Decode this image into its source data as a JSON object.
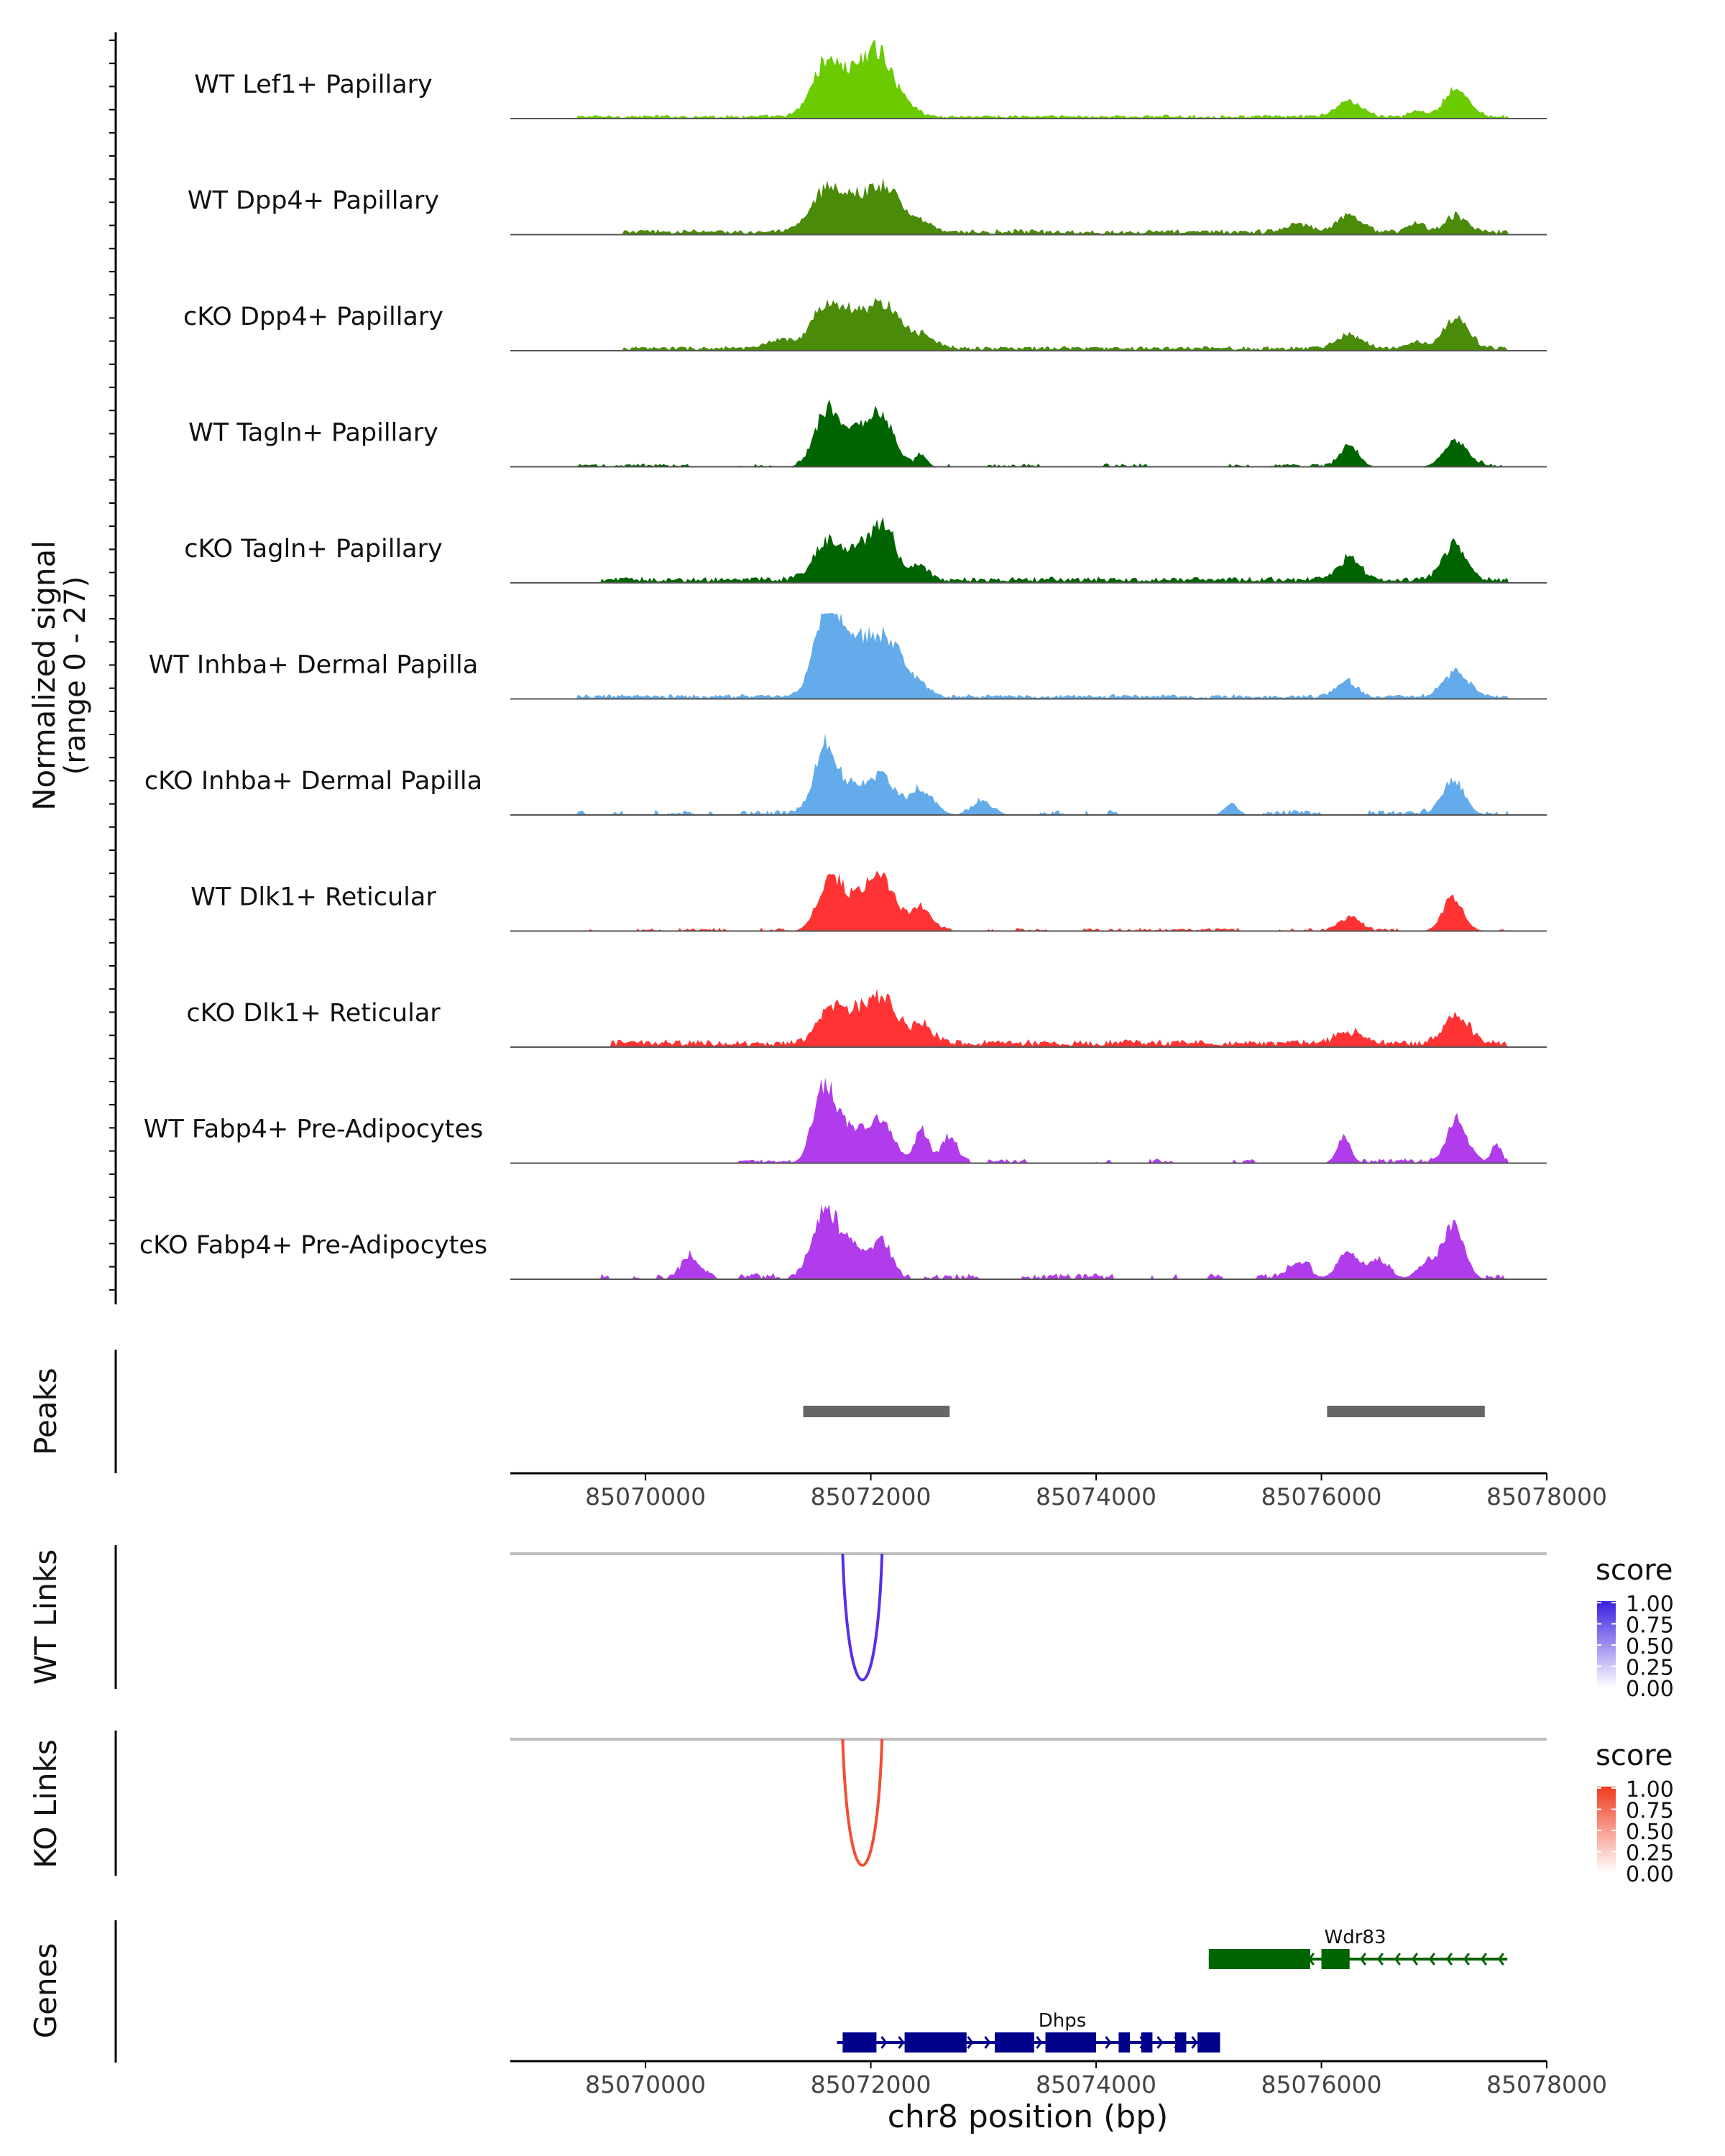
{
  "chart_data": {
    "type": "area",
    "title": "",
    "chromosome": "chr8",
    "region": [
      85068800,
      85078000
    ],
    "y_axis_label": [
      "Normalized signal",
      "(range 0 - 27)"
    ],
    "ylim": [
      0,
      27
    ],
    "x_axis": {
      "ticks": [
        85070000,
        85072000,
        85074000,
        85076000,
        85078000
      ],
      "tick_labels": [
        "85070000",
        "85072000",
        "85074000",
        "85076000",
        "85078000"
      ],
      "xlabel": "chr8 position (bp)"
    },
    "coverage_tracks": [
      {
        "name": "WT Lef1+ Papillary",
        "color": "#6CCB00",
        "profile": "wt_lef1"
      },
      {
        "name": "WT Dpp4+ Papillary",
        "color": "#4A8C0A",
        "profile": "wt_dpp4"
      },
      {
        "name": "cKO Dpp4+ Papillary",
        "color": "#4A8C0A",
        "profile": "cko_dpp4"
      },
      {
        "name": "WT Tagln+ Papillary",
        "color": "#006400",
        "profile": "wt_tagln"
      },
      {
        "name": "cKO Tagln+ Papillary",
        "color": "#006400",
        "profile": "cko_tagln"
      },
      {
        "name": "WT Inhba+ Dermal Papilla",
        "color": "#63ABEA",
        "profile": "wt_inhba"
      },
      {
        "name": "cKO Inhba+ Dermal Papilla",
        "color": "#63ABEA",
        "profile": "cko_inhba"
      },
      {
        "name": "WT Dlk1+ Reticular",
        "color": "#FF3333",
        "profile": "wt_dlk1"
      },
      {
        "name": "cKO Dlk1+ Reticular",
        "color": "#FF3333",
        "profile": "cko_dlk1"
      },
      {
        "name": "WT Fabp4+ Pre-Adipocytes",
        "color": "#B03CEB",
        "profile": "wt_fabp4"
      },
      {
        "name": "cKO Fabp4+ Pre-Adipocytes",
        "color": "#B03CEB",
        "profile": "cko_fabp4"
      }
    ],
    "peaks": {
      "label": "Peaks",
      "color": "#666666",
      "regions": [
        [
          85071400,
          85072700
        ],
        [
          85076050,
          85077450
        ]
      ]
    },
    "links": [
      {
        "label": "WT Links",
        "color": "#5A2EE8",
        "start": 85071750,
        "end": 85072100,
        "score": 1.0,
        "legend": {
          "title": "score",
          "ticks": [
            "1.00",
            "0.75",
            "0.50",
            "0.25",
            "0.00"
          ],
          "color": "#3A1FE0"
        }
      },
      {
        "label": "KO Links",
        "color": "#F05030",
        "start": 85071750,
        "end": 85072100,
        "score": 1.0,
        "legend": {
          "title": "score",
          "ticks": [
            "1.00",
            "0.75",
            "0.50",
            "0.25",
            "0.00"
          ],
          "color": "#F03A1F"
        }
      }
    ],
    "genes": {
      "label": "Genes",
      "items": [
        {
          "name": "Wdr83",
          "strand": "-",
          "color": "#006400",
          "start": 85075000,
          "end": 85077650,
          "exons": [
            [
              85075000,
              85075900
            ],
            [
              85076000,
              85076250
            ]
          ]
        },
        {
          "name": "Dhps",
          "strand": "+",
          "color": "#00008B",
          "start": 85071700,
          "end": 85075100,
          "exons": [
            [
              85071750,
              85072050
            ],
            [
              85072300,
              85072850
            ],
            [
              85073100,
              85073450
            ],
            [
              85073550,
              85074000
            ],
            [
              85074200,
              85074300
            ],
            [
              85074400,
              85074500
            ],
            [
              85074700,
              85074800
            ],
            [
              85074900,
              85075100
            ]
          ]
        }
      ]
    }
  }
}
